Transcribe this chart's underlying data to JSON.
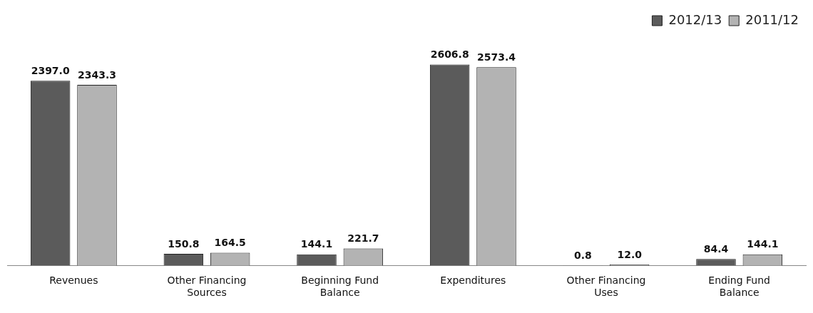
{
  "chart_data": {
    "type": "bar",
    "categories": [
      "Revenues",
      "Other Financing Sources",
      "Beginning Fund Balance",
      "Expenditures",
      "Other Financing Uses",
      "Ending Fund Balance"
    ],
    "series": [
      {
        "name": "2012/13",
        "color": "#5b5b5b",
        "values": [
          2397.0,
          150.8,
          144.1,
          2606.8,
          0.8,
          84.4
        ],
        "value_labels": [
          "2397.0",
          "150.8",
          "144.1",
          "2606.8",
          "0.8",
          "84.4"
        ]
      },
      {
        "name": "2011/12",
        "color": "#b3b3b3",
        "values": [
          2343.3,
          164.5,
          221.7,
          2573.4,
          12.0,
          144.1
        ],
        "value_labels": [
          "2343.3",
          "164.5",
          "221.7",
          "2573.4",
          "12.0",
          "144.1"
        ]
      }
    ],
    "legend": "top right",
    "grid": false
  }
}
